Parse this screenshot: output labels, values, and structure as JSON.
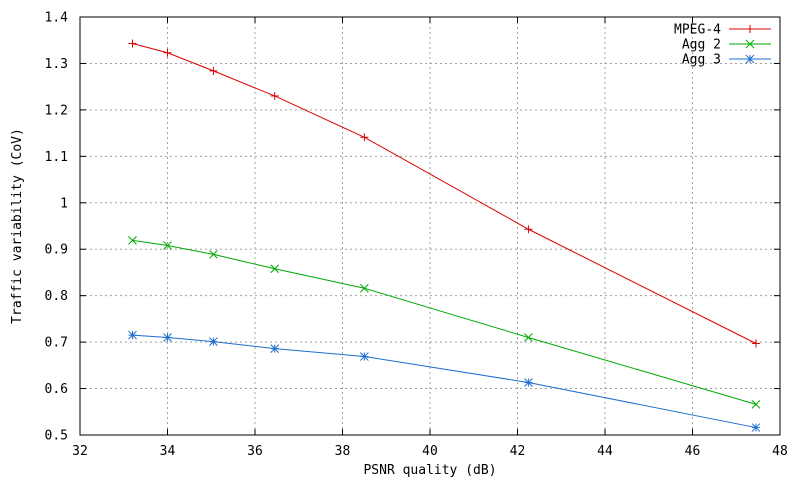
{
  "chart_data": {
    "type": "line",
    "title": "",
    "xlabel": "PSNR quality (dB)",
    "ylabel": "Traffic variability (CoV)",
    "xlim": [
      32,
      48
    ],
    "ylim": [
      0.5,
      1.4
    ],
    "xticks": [
      32,
      34,
      36,
      38,
      40,
      42,
      44,
      46,
      48
    ],
    "yticks": [
      0.5,
      0.6,
      0.7,
      0.8,
      0.9,
      1,
      1.1,
      1.2,
      1.3,
      1.4
    ],
    "xtick_labels": [
      "32",
      "34",
      "36",
      "38",
      "40",
      "42",
      "44",
      "46",
      "48"
    ],
    "ytick_labels": [
      "0.5",
      "0.6",
      "0.7",
      "0.8",
      "0.9",
      "1",
      "1.1",
      "1.2",
      "1.3",
      "1.4"
    ],
    "grid": true,
    "legend_position": "top-right",
    "series": [
      {
        "name": "MPEG-4",
        "color": "#dd0000",
        "marker": "plus",
        "points": [
          {
            "x": 33.2,
            "y": 1.343
          },
          {
            "x": 34.0,
            "y": 1.323
          },
          {
            "x": 35.05,
            "y": 1.284
          },
          {
            "x": 36.45,
            "y": 1.23
          },
          {
            "x": 38.5,
            "y": 1.141
          },
          {
            "x": 42.25,
            "y": 0.943
          },
          {
            "x": 47.45,
            "y": 0.697
          }
        ]
      },
      {
        "name": "Agg 2",
        "color": "#00aa00",
        "marker": "cross",
        "points": [
          {
            "x": 33.2,
            "y": 0.919
          },
          {
            "x": 34.0,
            "y": 0.908
          },
          {
            "x": 35.05,
            "y": 0.889
          },
          {
            "x": 36.45,
            "y": 0.858
          },
          {
            "x": 38.5,
            "y": 0.816
          },
          {
            "x": 42.25,
            "y": 0.71
          },
          {
            "x": 47.45,
            "y": 0.566
          }
        ]
      },
      {
        "name": "Agg 3",
        "color": "#1e6fd0",
        "marker": "star",
        "points": [
          {
            "x": 33.2,
            "y": 0.715
          },
          {
            "x": 34.0,
            "y": 0.71
          },
          {
            "x": 35.05,
            "y": 0.701
          },
          {
            "x": 36.45,
            "y": 0.686
          },
          {
            "x": 38.5,
            "y": 0.669
          },
          {
            "x": 42.25,
            "y": 0.613
          },
          {
            "x": 47.45,
            "y": 0.516
          }
        ]
      }
    ]
  }
}
